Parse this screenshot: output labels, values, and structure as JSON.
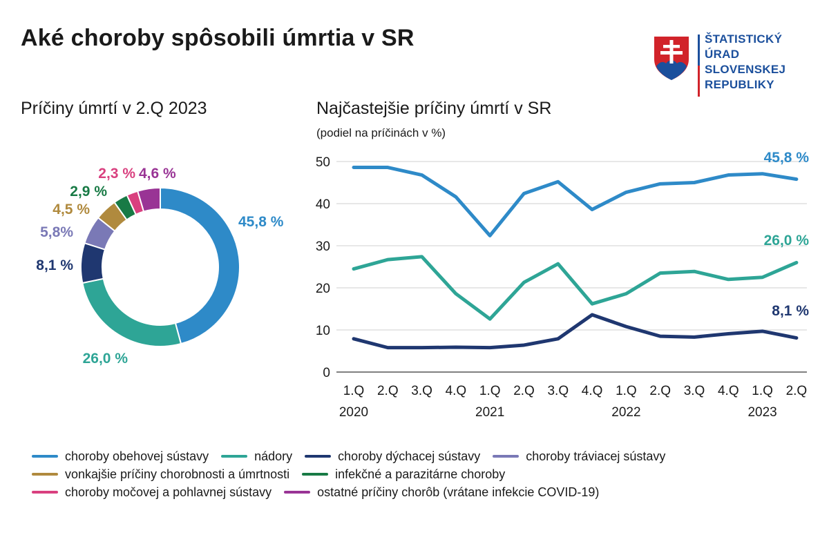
{
  "title": "Aké choroby spôsobili úmrtia v SR",
  "logo": {
    "lines": [
      "ŠTATISTICKÝ",
      "ÚRAD",
      "SLOVENSKEJ",
      "REPUBLIKY"
    ],
    "colors": {
      "blue": "#1b4f9c",
      "red": "#d1232a"
    }
  },
  "left_subtitle": "Príčiny úmrtí v 2.Q 2023",
  "right_subtitle": "Najčastejšie príčiny úmrtí v SR",
  "unit_note": "(podiel na príčinách v %)",
  "chart_data": [
    {
      "type": "pie",
      "variant": "donut",
      "title": "Príčiny úmrtí v 2.Q 2023",
      "slices": [
        {
          "key": "obehova",
          "label": "45,8 %",
          "value": 45.8,
          "color": "#2e8ac8"
        },
        {
          "key": "nadory",
          "label": "26,0 %",
          "value": 26.0,
          "color": "#2ea596"
        },
        {
          "key": "dychacia",
          "label": "8,1 %",
          "value": 8.1,
          "color": "#1f3770"
        },
        {
          "key": "traviaca",
          "label": "5,8%",
          "value": 5.8,
          "color": "#7a79b6"
        },
        {
          "key": "vonkajsie",
          "label": "4,5 %",
          "value": 4.5,
          "color": "#b08a3e"
        },
        {
          "key": "infekcne",
          "label": "2,9 %",
          "value": 2.9,
          "color": "#187a45"
        },
        {
          "key": "mocova",
          "label": "2,3 %",
          "value": 2.3,
          "color": "#d9407f"
        },
        {
          "key": "ostatne",
          "label": "4,6 %",
          "value": 4.6,
          "color": "#993495"
        }
      ]
    },
    {
      "type": "line",
      "title": "Najčastejšie príčiny úmrtí v SR",
      "ylabel": "(podiel na príčinách v %)",
      "ylim": [
        0,
        50
      ],
      "yticks": [
        0,
        10,
        20,
        30,
        40,
        50
      ],
      "grid": true,
      "categories": [
        "1.Q",
        "2.Q",
        "3.Q",
        "4.Q",
        "1.Q",
        "2.Q",
        "3.Q",
        "4.Q",
        "1.Q",
        "2.Q",
        "3.Q",
        "4.Q",
        "1.Q",
        "2.Q"
      ],
      "year_labels": [
        {
          "index": 0,
          "label": "2020"
        },
        {
          "index": 4,
          "label": "2021"
        },
        {
          "index": 8,
          "label": "2022"
        },
        {
          "index": 12,
          "label": "2023"
        }
      ],
      "series": [
        {
          "name": "choroby obehovej sústavy",
          "color": "#2e8ac8",
          "end_label": "45,8 %",
          "values": [
            48.6,
            48.6,
            46.8,
            41.6,
            32.4,
            42.4,
            45.2,
            38.6,
            42.7,
            44.7,
            45.0,
            46.8,
            47.1,
            45.8
          ]
        },
        {
          "name": "nádory",
          "color": "#2ea596",
          "end_label": "26,0 %",
          "values": [
            24.5,
            26.7,
            27.4,
            18.6,
            12.6,
            21.3,
            25.7,
            16.2,
            18.6,
            23.5,
            23.9,
            22.0,
            22.5,
            26.0
          ]
        },
        {
          "name": "choroby dýchacej sústavy",
          "color": "#1f3770",
          "end_label": "8,1 %",
          "values": [
            7.9,
            5.8,
            5.8,
            5.9,
            5.8,
            6.4,
            7.9,
            13.6,
            10.8,
            8.5,
            8.3,
            9.1,
            9.7,
            8.1
          ]
        }
      ]
    }
  ],
  "legend": [
    [
      {
        "label": "choroby obehovej sústavy",
        "color": "#2e8ac8"
      },
      {
        "label": "nádory",
        "color": "#2ea596"
      },
      {
        "label": "choroby dýchacej sústavy",
        "color": "#1f3770"
      },
      {
        "label": "choroby tráviacej sústavy",
        "color": "#7a79b6"
      }
    ],
    [
      {
        "label": "vonkajšie príčiny chorobnosti a úmrtnosti",
        "color": "#b08a3e"
      },
      {
        "label": "infekčné a parazitárne choroby",
        "color": "#187a45"
      }
    ],
    [
      {
        "label": "choroby močovej a pohlavnej sústavy",
        "color": "#d9407f"
      },
      {
        "label": "ostatné príčiny chorôb (vrátane infekcie COVID-19)",
        "color": "#993495"
      }
    ]
  ]
}
